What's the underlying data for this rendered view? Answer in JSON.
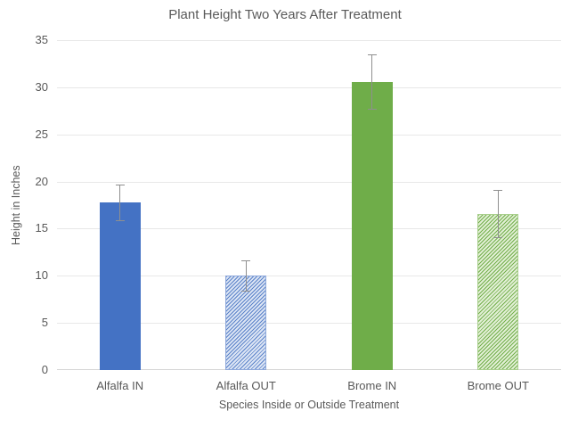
{
  "chart_data": {
    "type": "bar",
    "title": "Plant Height Two Years After Treatment",
    "xlabel": "Species Inside or Outside Treatment",
    "ylabel": "Height in Inches",
    "categories": [
      "Alfalfa IN",
      "Alfalfa OUT",
      "Brome IN",
      "Brome OUT"
    ],
    "values": [
      17.8,
      10.0,
      30.6,
      16.6
    ],
    "error_bars": [
      1.9,
      1.6,
      2.9,
      2.5
    ],
    "ylim": [
      0,
      35
    ],
    "yticks": [
      0,
      5,
      10,
      15,
      20,
      25,
      30,
      35
    ],
    "grid": true,
    "legend_position": "none",
    "bar_styles": [
      {
        "pattern": "solid",
        "color": "#4472C4"
      },
      {
        "pattern": "diagonal-hatch",
        "color": "#4472C4",
        "stripe": "#5b83c9",
        "background": "#dbe4f4",
        "border": "#8ea9db"
      },
      {
        "pattern": "solid",
        "color": "#6FAD49"
      },
      {
        "pattern": "diagonal-hatch",
        "color": "#6FAD49",
        "stripe": "#74af4d",
        "background": "#e1efd4",
        "border": "#a9cf8d"
      }
    ],
    "error_bar_color": "#8f8f8f",
    "text_color": "#595959",
    "gridline_color": "#e8e8e8",
    "axis_line_color": "#d6d6d6"
  }
}
